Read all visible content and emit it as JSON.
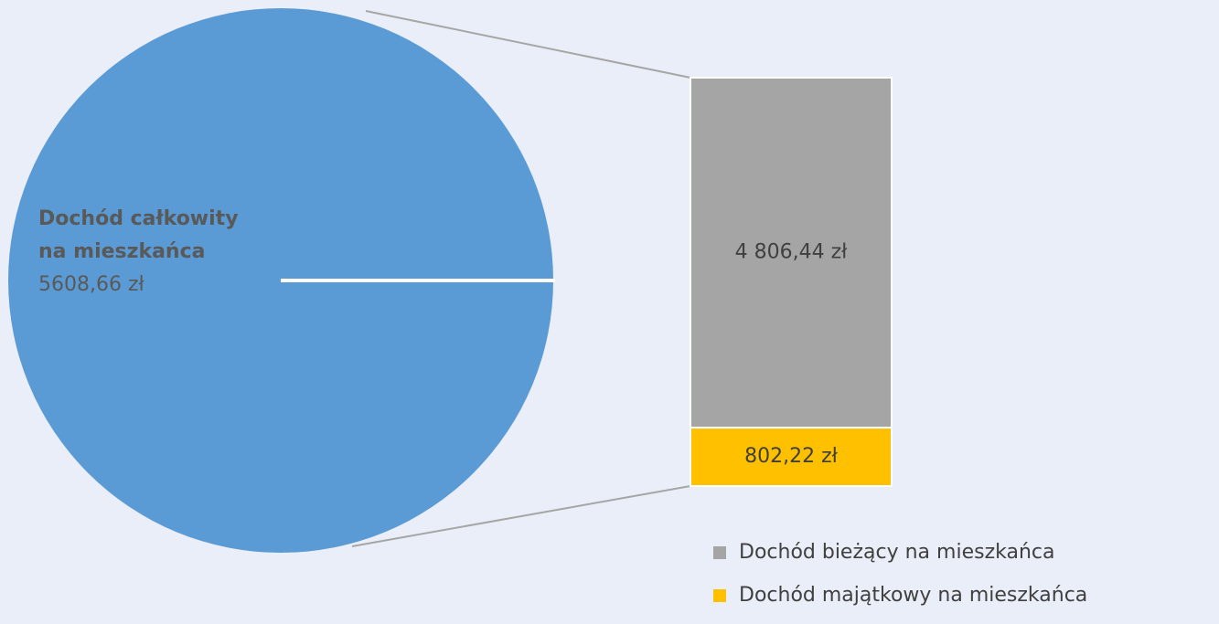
{
  "chart_data": {
    "type": "pie",
    "categories": [
      "Dochód całkowity na mieszkańca"
    ],
    "values": [
      5608.66
    ],
    "value_labels": [
      "5608,66 zł"
    ],
    "color": "#5b9bd5",
    "breakdown": {
      "type": "bar",
      "series": [
        {
          "name": "Dochód bieżący na mieszkańca",
          "color": "#a5a5a5",
          "values": [
            4806.44
          ],
          "value_labels": [
            "4 806,44 zł"
          ]
        },
        {
          "name": "Dochód majątkowy na mieszkańca",
          "color": "#ffc000",
          "values": [
            802.22
          ],
          "value_labels": [
            "802,22 zł"
          ]
        }
      ]
    }
  }
}
